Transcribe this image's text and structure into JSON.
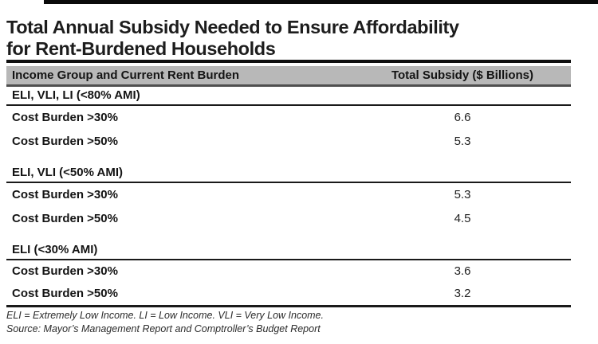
{
  "title": {
    "line1": "Total Annual Subsidy Needed to Ensure Affordability",
    "line2": "for Rent-Burdened Households"
  },
  "table": {
    "header": {
      "col1": "Income Group and Current Rent Burden",
      "col2": "Total Subsidy ($ Billions)"
    },
    "sections": [
      {
        "label": "ELI, VLI, LI (<80% AMI)",
        "rows": [
          {
            "label": "Cost Burden >30%",
            "value": "6.6"
          },
          {
            "label": "Cost Burden >50%",
            "value": "5.3"
          }
        ]
      },
      {
        "label": "ELI, VLI (<50% AMI)",
        "rows": [
          {
            "label": "Cost Burden >30%",
            "value": "5.3"
          },
          {
            "label": "Cost Burden >50%",
            "value": "4.5"
          }
        ]
      },
      {
        "label": "ELI (<30% AMI)",
        "rows": [
          {
            "label": "Cost Burden >30%",
            "value": "3.6"
          },
          {
            "label": "Cost Burden >50%",
            "value": "3.2"
          }
        ]
      }
    ]
  },
  "footnotes": {
    "line1": "ELI = Extremely Low Income. LI = Low Income. VLI = Very Low Income.",
    "line2": "Source: Mayor’s Management Report and Comptroller’s Budget Report"
  },
  "colors": {
    "header_band": "#b8b8b8",
    "rule_dark": "#1a1a1a",
    "text": "#141414"
  },
  "chart_data": {
    "type": "table",
    "title": "Total Annual Subsidy Needed to Ensure Affordability for Rent-Burdened Households",
    "columns": [
      "Income Group and Current Rent Burden",
      "Total Subsidy ($ Billions)"
    ],
    "rows": [
      [
        "ELI, VLI, LI (<80% AMI)",
        null
      ],
      [
        "Cost Burden >30%",
        6.6
      ],
      [
        "Cost Burden >50%",
        5.3
      ],
      [
        "ELI, VLI (<50% AMI)",
        null
      ],
      [
        "Cost Burden >30%",
        5.3
      ],
      [
        "Cost Burden >50%",
        4.5
      ],
      [
        "ELI (<30% AMI)",
        null
      ],
      [
        "Cost Burden >30%",
        3.6
      ],
      [
        "Cost Burden >50%",
        3.2
      ]
    ],
    "notes": [
      "ELI = Extremely Low Income. LI = Low Income. VLI = Very Low Income.",
      "Source: Mayor’s Management Report and Comptroller’s Budget Report"
    ]
  }
}
